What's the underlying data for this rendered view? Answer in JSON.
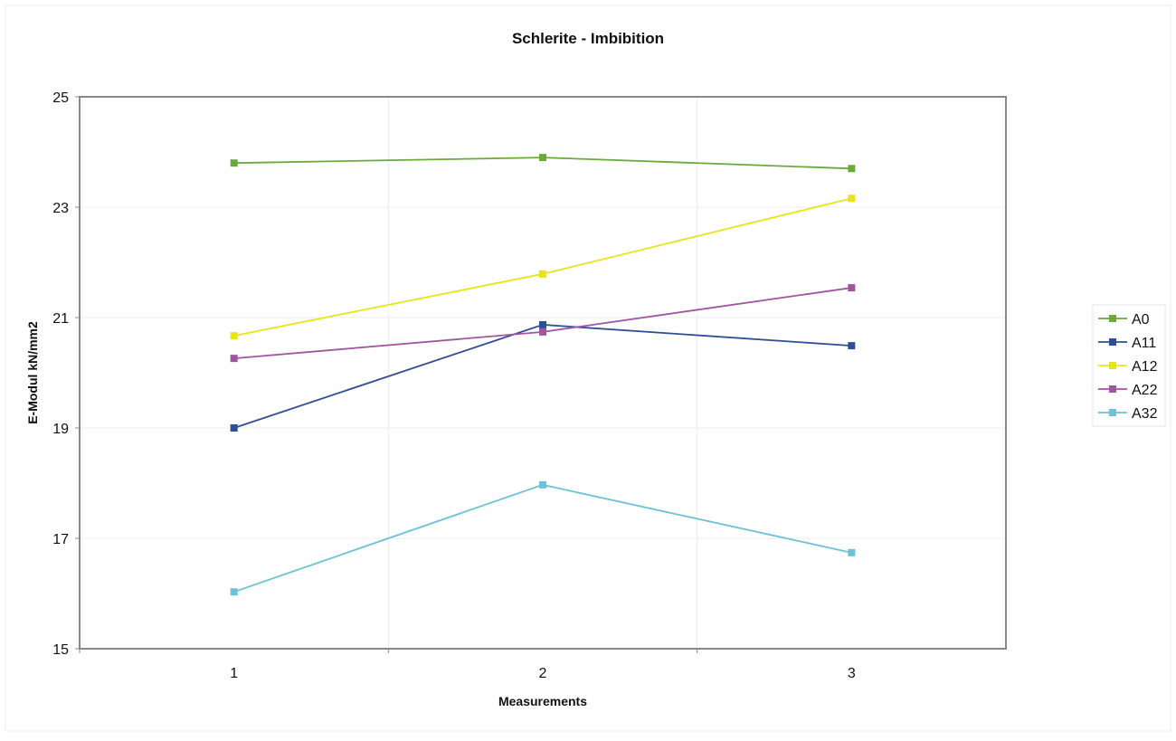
{
  "chart_data": {
    "type": "line",
    "title": "Schlerite - Imbibition",
    "xlabel": "Measurements",
    "ylabel": "E-Modul kN/mm2",
    "categories": [
      "1",
      "2",
      "3"
    ],
    "ylim": [
      15,
      25
    ],
    "yticks": [
      15,
      17,
      19,
      21,
      23,
      25
    ],
    "grid": true,
    "legend_position": "right",
    "series": [
      {
        "name": "A0",
        "color": "#6aaa3a",
        "values": [
          23.8,
          23.9,
          23.7
        ]
      },
      {
        "name": "A11",
        "color": "#2e4f95",
        "values": [
          19.0,
          20.87,
          20.49
        ]
      },
      {
        "name": "A12",
        "color": "#e8e41a",
        "values": [
          20.67,
          21.79,
          23.16
        ]
      },
      {
        "name": "A22",
        "color": "#a0559f",
        "values": [
          20.26,
          20.74,
          21.54
        ]
      },
      {
        "name": "A32",
        "color": "#6cc2d6",
        "values": [
          16.03,
          17.97,
          16.74
        ]
      }
    ]
  }
}
